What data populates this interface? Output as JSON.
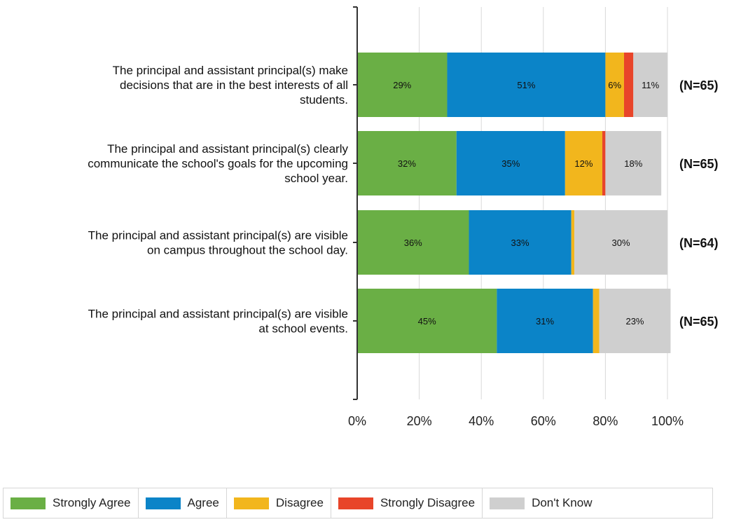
{
  "chart_data": {
    "type": "bar",
    "orientation": "horizontal",
    "stacked": true,
    "categories": [
      [
        "The principal and assistant principal(s) make",
        "decisions that are in the best interests of all",
        "students."
      ],
      [
        "The principal and assistant principal(s) clearly",
        "communicate the school's goals for the upcoming",
        "school year."
      ],
      [
        "The principal and assistant principal(s) are visible",
        "on campus throughout the school day."
      ],
      [
        "The principal and assistant principal(s) are visible",
        "at school events."
      ]
    ],
    "n_labels": [
      "(N=65)",
      "(N=65)",
      "(N=64)",
      "(N=65)"
    ],
    "series": [
      {
        "name": "Strongly Agree",
        "color": "#6aaf45",
        "values": [
          29,
          32,
          36,
          45
        ],
        "labels": [
          "29%",
          "32%",
          "36%",
          "45%"
        ]
      },
      {
        "name": "Agree",
        "color": "#0b84c8",
        "values": [
          51,
          35,
          33,
          31
        ],
        "labels": [
          "51%",
          "35%",
          "33%",
          "31%"
        ]
      },
      {
        "name": "Disagree",
        "color": "#f2b61d",
        "values": [
          6,
          12,
          1,
          2
        ],
        "labels": [
          "6%",
          "12%",
          "",
          ""
        ]
      },
      {
        "name": "Strongly Disagree",
        "color": "#e8452a",
        "values": [
          3,
          1,
          0,
          0
        ],
        "labels": [
          "",
          "",
          "",
          ""
        ]
      },
      {
        "name": "Don't Know",
        "color": "#cfcfcf",
        "values": [
          11,
          18,
          30,
          23
        ],
        "labels": [
          "11%",
          "18%",
          "30%",
          "23%"
        ]
      }
    ],
    "xlim": [
      0,
      100
    ],
    "xticks": [
      0,
      20,
      40,
      60,
      80,
      100
    ],
    "xtick_labels": [
      "0%",
      "20%",
      "40%",
      "60%",
      "80%",
      "100%"
    ],
    "grid": true,
    "legend_position": "bottom"
  }
}
